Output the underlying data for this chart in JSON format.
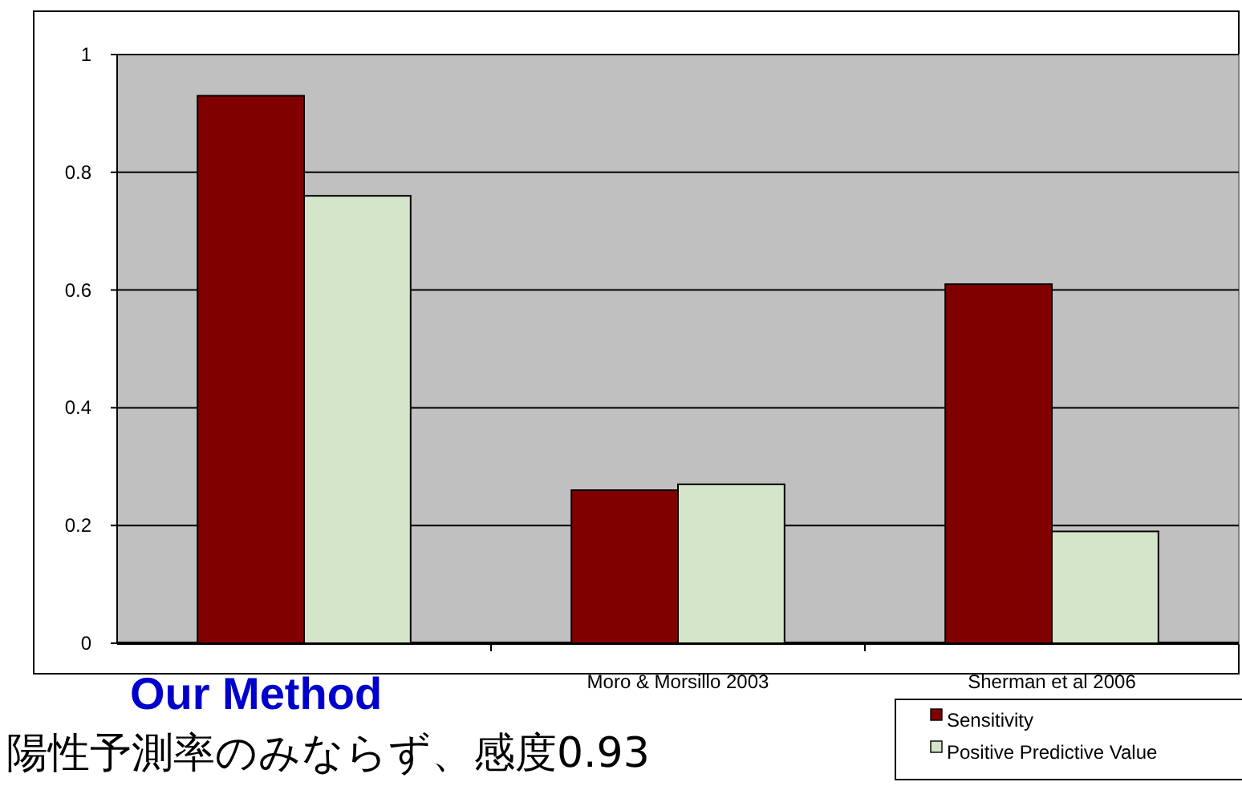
{
  "chart_data": {
    "type": "bar",
    "categories": [
      "Our Method",
      "Moro & Morsillo 2003",
      "Sherman et al 2006"
    ],
    "series": [
      {
        "name": "Sensitivity",
        "color": "#800000",
        "values": [
          0.93,
          0.26,
          0.61
        ]
      },
      {
        "name": "Positive Predictive Value",
        "color": "#d5e5c9",
        "values": [
          0.76,
          0.27,
          0.19
        ]
      }
    ],
    "ylim": [
      0,
      1
    ],
    "yticks": [
      0,
      0.2,
      0.4,
      0.6,
      0.8,
      1
    ],
    "grid": "y",
    "legend": "bottom right",
    "annotations": [
      "陽性予測率のみならず、感度0.93"
    ]
  }
}
